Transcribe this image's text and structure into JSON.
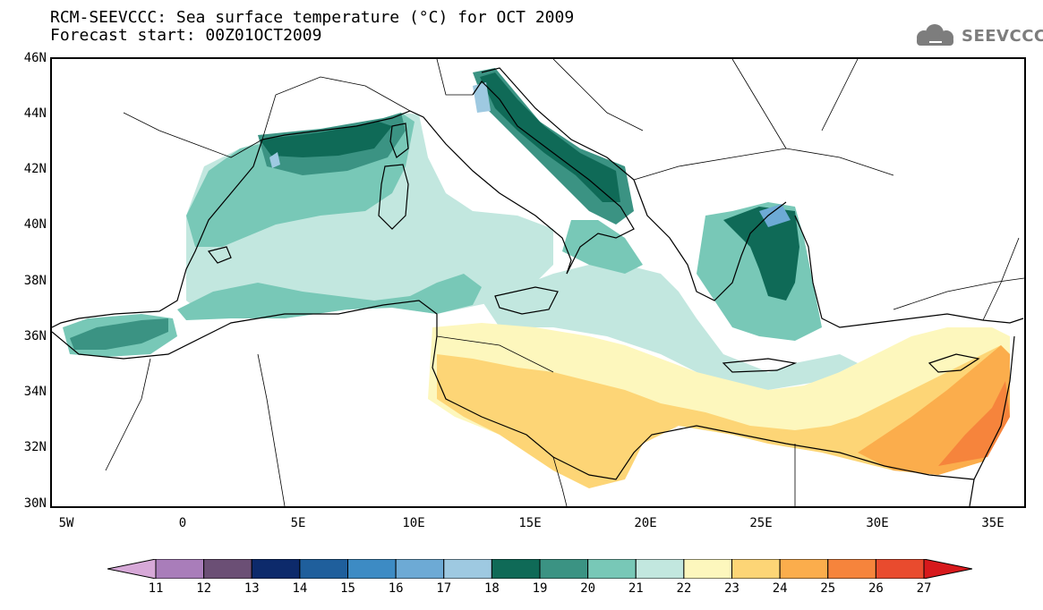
{
  "title": {
    "line1": "RCM-SEEVCCC: Sea surface temperature (°C) for OCT 2009",
    "line2": "Forecast start: 00Z01OCT2009"
  },
  "logo": {
    "text": "SEEVCCC",
    "icon": "cloud-icon"
  },
  "map": {
    "y_ticks": [
      "46N",
      "44N",
      "42N",
      "40N",
      "38N",
      "36N",
      "34N",
      "32N",
      "30N"
    ],
    "x_ticks": [
      "5W",
      "0",
      "5E",
      "10E",
      "15E",
      "20E",
      "25E",
      "30E",
      "35E"
    ]
  },
  "colorbar": {
    "labels": [
      "11",
      "12",
      "13",
      "14",
      "15",
      "16",
      "17",
      "18",
      "19",
      "20",
      "21",
      "22",
      "23",
      "24",
      "25",
      "26",
      "27"
    ],
    "colors": [
      "#d7a9d8",
      "#a97dba",
      "#6b4f75",
      "#0d2a6b",
      "#1f5f9c",
      "#3d8bc4",
      "#6daad5",
      "#9ec9e1",
      "#0f6a57",
      "#3b9383",
      "#78c8b7",
      "#c2e7df",
      "#fdf7bd",
      "#fdd576",
      "#fbad4c",
      "#f6843c",
      "#e94b2e",
      "#d7191c"
    ]
  }
}
